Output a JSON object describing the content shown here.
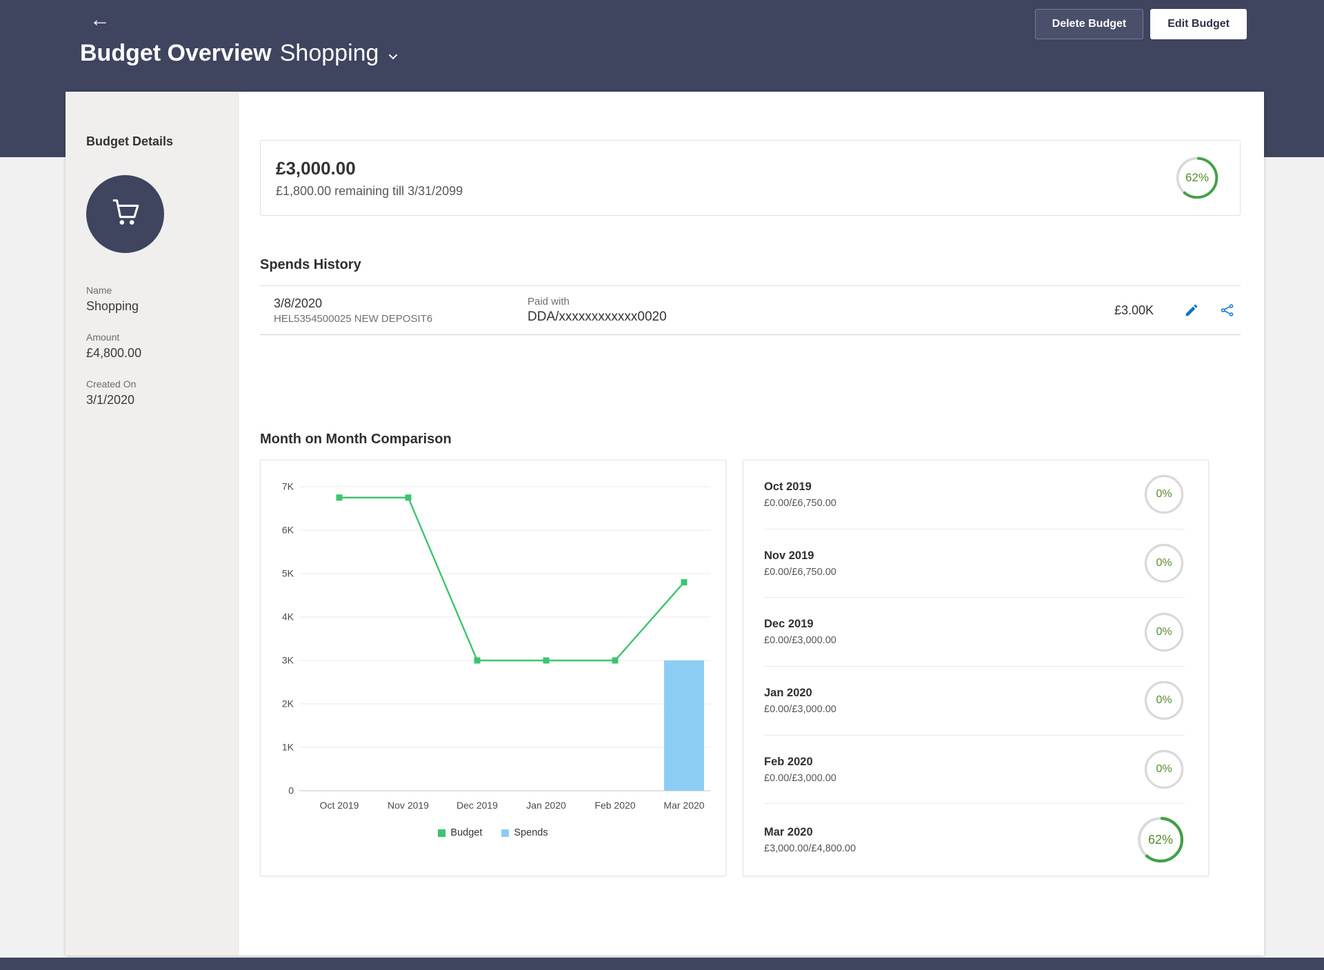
{
  "theme": {
    "header_bg": "#3f445f",
    "chart_green": "#3cc46e",
    "bar_blue": "#8ccdf3",
    "ring_green": "#43a047",
    "ring_track": "#d9d9d9",
    "percent_text": "#558b2f",
    "icon_blue": "#0572ce"
  },
  "header": {
    "back_icon": "←",
    "title": "Budget Overview",
    "subtitle": "Shopping",
    "buttons": {
      "delete": "Delete Budget",
      "edit": "Edit Budget"
    }
  },
  "sidebar": {
    "heading": "Budget Details",
    "avatar_icon": "shopping-cart",
    "fields": [
      {
        "label": "Name",
        "value": "Shopping"
      },
      {
        "label": "Amount",
        "value": "£4,800.00"
      },
      {
        "label": "Created On",
        "value": "3/1/2020"
      }
    ]
  },
  "summary": {
    "amount": "£3,000.00",
    "remaining": "£1,800.00 remaining till 3/31/2099",
    "percent_label": "62%",
    "percent_value": 62
  },
  "spends_history": {
    "heading": "Spends History",
    "rows": [
      {
        "date": "3/8/2020",
        "reference": "HEL5354500025 NEW DEPOSIT6",
        "paid_with_label": "Paid with",
        "paid_with_value": "DDA/xxxxxxxxxxxx0020",
        "amount": "£3.00K"
      }
    ]
  },
  "comparison": {
    "heading": "Month on Month Comparison",
    "chart_data": {
      "type": "line+bar",
      "categories": [
        "Oct 2019",
        "Nov 2019",
        "Dec 2019",
        "Jan 2020",
        "Feb 2020",
        "Mar 2020"
      ],
      "series": [
        {
          "name": "Budget",
          "type": "line",
          "values": [
            6750,
            6750,
            3000,
            3000,
            3000,
            4800
          ]
        },
        {
          "name": "Spends",
          "type": "bar",
          "values": [
            0,
            0,
            0,
            0,
            0,
            3000
          ]
        }
      ],
      "ylim": [
        0,
        7000
      ],
      "ytick_step": 1000,
      "ytick_labels": [
        "0",
        "1K",
        "2K",
        "3K",
        "4K",
        "5K",
        "6K",
        "7K"
      ],
      "grid": true,
      "legend_position": "bottom"
    },
    "months": [
      {
        "label": "Oct 2019",
        "detail": "£0.00/£6,750.00",
        "percent_label": "0%",
        "percent_value": 0
      },
      {
        "label": "Nov 2019",
        "detail": "£0.00/£6,750.00",
        "percent_label": "0%",
        "percent_value": 0
      },
      {
        "label": "Dec 2019",
        "detail": "£0.00/£3,000.00",
        "percent_label": "0%",
        "percent_value": 0
      },
      {
        "label": "Jan 2020",
        "detail": "£0.00/£3,000.00",
        "percent_label": "0%",
        "percent_value": 0
      },
      {
        "label": "Feb 2020",
        "detail": "£0.00/£3,000.00",
        "percent_label": "0%",
        "percent_value": 0
      },
      {
        "label": "Mar 2020",
        "detail": "£3,000.00/£4,800.00",
        "percent_label": "62%",
        "percent_value": 62
      }
    ]
  }
}
